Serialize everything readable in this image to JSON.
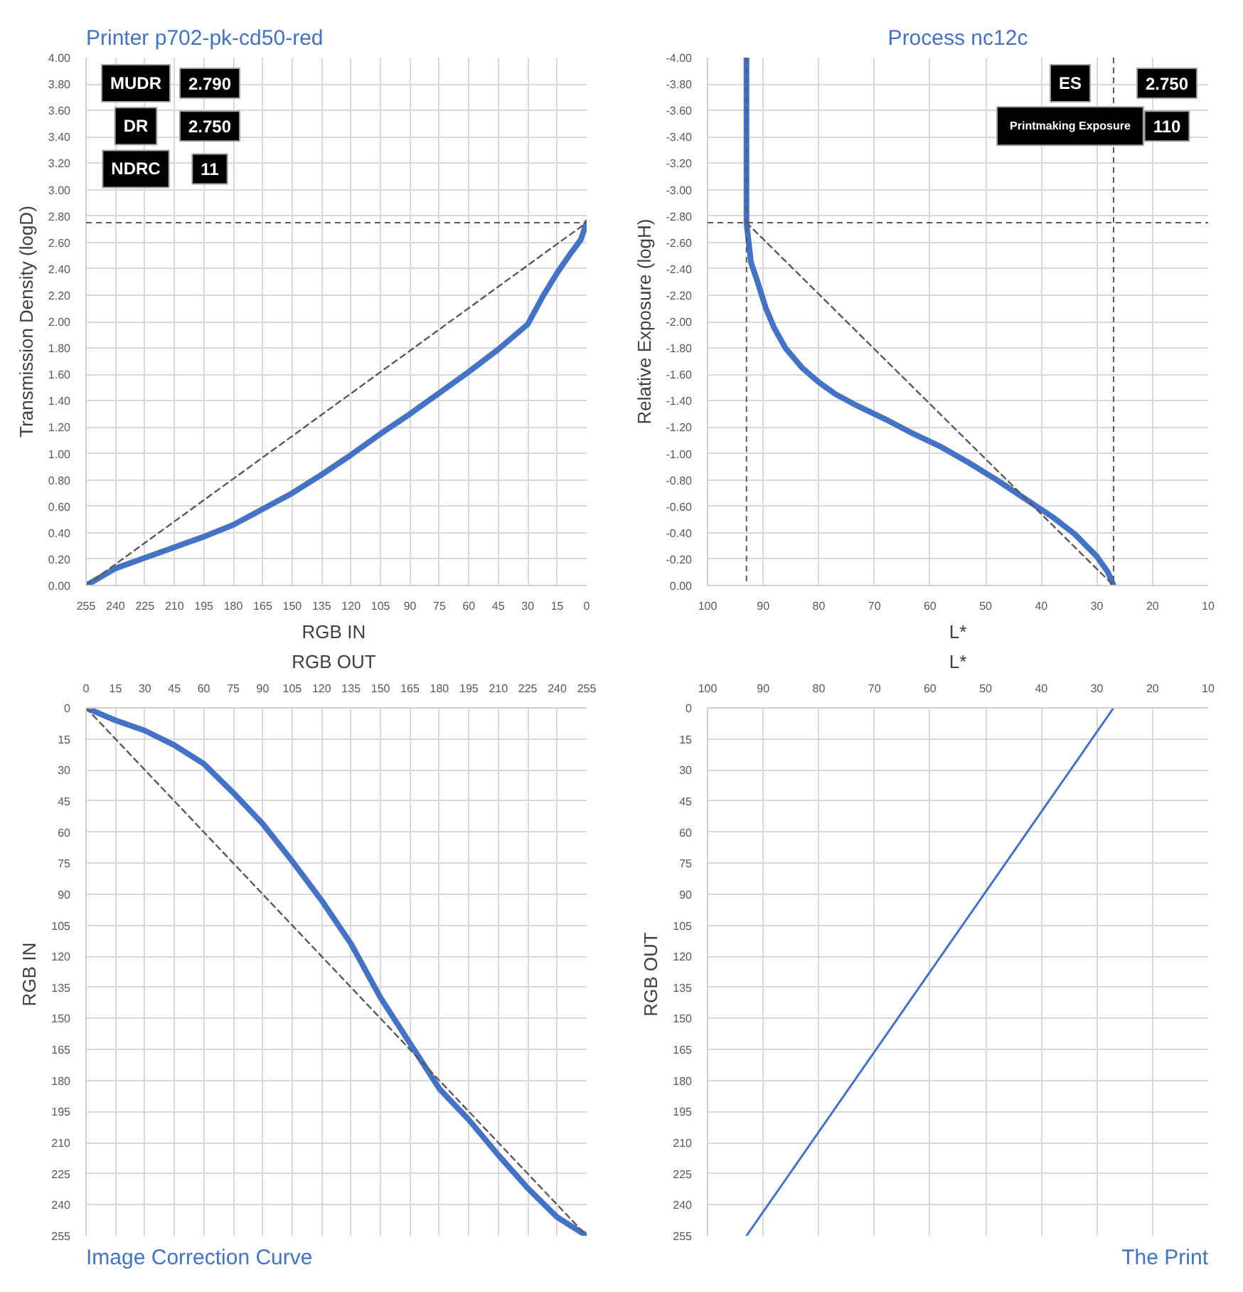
{
  "chart_data": [
    {
      "type": "line",
      "title": "Printer p702-pk-cd50-red",
      "xlabel": "RGB  IN",
      "ylabel": "Transmission Density (logD)",
      "xlim": [
        255,
        0
      ],
      "ylim": [
        0,
        4
      ],
      "xticks": [
        255,
        240,
        225,
        210,
        195,
        180,
        165,
        150,
        135,
        120,
        105,
        90,
        75,
        60,
        45,
        30,
        15,
        0
      ],
      "yticks": [
        {
          "value": 0,
          "label": "0.00"
        },
        {
          "value": 0.2,
          "label": "0.20"
        },
        {
          "value": 0.4,
          "label": "0.40"
        },
        {
          "value": 0.6,
          "label": "0.60"
        },
        {
          "value": 0.8,
          "label": "0.80"
        },
        {
          "value": 1,
          "label": "1.00"
        },
        {
          "value": 1.2,
          "label": "1.20"
        },
        {
          "value": 1.4,
          "label": "1.40"
        },
        {
          "value": 1.6,
          "label": "1.60"
        },
        {
          "value": 1.8,
          "label": "1.80"
        },
        {
          "value": 2,
          "label": "2.00"
        },
        {
          "value": 2.2,
          "label": "2.20"
        },
        {
          "value": 2.4,
          "label": "2.40"
        },
        {
          "value": 2.6,
          "label": "2.60"
        },
        {
          "value": 2.8,
          "label": "2.80"
        },
        {
          "value": 3,
          "label": "3.00"
        },
        {
          "value": 3.2,
          "label": "3.20"
        },
        {
          "value": 3.4,
          "label": "3.40"
        },
        {
          "value": 3.6,
          "label": "3.60"
        },
        {
          "value": 3.8,
          "label": "3.80"
        },
        {
          "value": 4,
          "label": "4.00"
        }
      ],
      "grid": true,
      "line_style": "solid",
      "series": [
        {
          "color": "#4472c4",
          "x": [
            255,
            240,
            225,
            210,
            195,
            180,
            165,
            150,
            135,
            120,
            105,
            90,
            75,
            60,
            45,
            30,
            22,
            15,
            8,
            3,
            0
          ],
          "values": [
            0,
            0.13,
            0.21,
            0.29,
            0.37,
            0.46,
            0.58,
            0.7,
            0.84,
            0.99,
            1.15,
            1.3,
            1.46,
            1.62,
            1.79,
            1.98,
            2.2,
            2.37,
            2.52,
            2.62,
            2.75
          ]
        },
        {
          "color": "#595959",
          "line_style": "dashed",
          "x": [
            255,
            0
          ],
          "values": [
            0,
            2.75
          ]
        }
      ],
      "ref_lines": [
        {
          "axis": "y",
          "value": 2.75,
          "color": "#595959",
          "line_style": "dashed"
        }
      ],
      "annotations": [
        "MUDR",
        "2.790",
        "DR",
        "2.750",
        "NDRC",
        "11"
      ]
    },
    {
      "type": "line",
      "title": "Process nc12c",
      "xlabel": "L*",
      "ylabel": "Relative Exposure (logH)",
      "xlim": [
        100,
        10
      ],
      "ylim": [
        0,
        -4
      ],
      "xticks": [
        100,
        90,
        80,
        70,
        60,
        50,
        40,
        30,
        20,
        10
      ],
      "yticks": [
        {
          "value": 0,
          "label": "0.00"
        },
        {
          "value": -0.2,
          "label": "-0.20"
        },
        {
          "value": -0.4,
          "label": "-0.40"
        },
        {
          "value": -0.6,
          "label": "-0.60"
        },
        {
          "value": -0.8,
          "label": "-0.80"
        },
        {
          "value": -1,
          "label": "-1.00"
        },
        {
          "value": -1.2,
          "label": "-1.20"
        },
        {
          "value": -1.4,
          "label": "-1.40"
        },
        {
          "value": -1.6,
          "label": "-1.60"
        },
        {
          "value": -1.8,
          "label": "-1.80"
        },
        {
          "value": -2,
          "label": "-2.00"
        },
        {
          "value": -2.2,
          "label": "-2.20"
        },
        {
          "value": -2.4,
          "label": "-2.40"
        },
        {
          "value": -2.6,
          "label": "-2.60"
        },
        {
          "value": -2.8,
          "label": "-2.80"
        },
        {
          "value": -3,
          "label": "-3.00"
        },
        {
          "value": -3.2,
          "label": "-3.20"
        },
        {
          "value": -3.4,
          "label": "-3.40"
        },
        {
          "value": -3.6,
          "label": "-3.60"
        },
        {
          "value": -3.8,
          "label": "-3.80"
        },
        {
          "value": -4,
          "label": "-4.00"
        }
      ],
      "grid": true,
      "line_style": "solid",
      "series": [
        {
          "color": "#4472c4",
          "x": [
            93,
            93,
            92.6,
            92.2,
            91,
            89.5,
            88,
            86,
            83,
            80,
            77,
            73,
            68,
            63,
            58,
            53,
            48,
            43,
            38,
            34,
            30,
            28,
            27
          ],
          "values": [
            -4,
            -2.75,
            -2.6,
            -2.45,
            -2.3,
            -2.1,
            -1.95,
            -1.8,
            -1.65,
            -1.54,
            -1.45,
            -1.36,
            -1.26,
            -1.15,
            -1.05,
            -0.93,
            -0.8,
            -0.66,
            -0.52,
            -0.39,
            -0.22,
            -0.1,
            0
          ]
        },
        {
          "color": "#595959",
          "line_style": "dashed",
          "x": [
            93,
            27
          ],
          "values": [
            -2.75,
            0
          ]
        }
      ],
      "ref_lines": [
        {
          "axis": "y",
          "value": -2.75,
          "color": "#595959",
          "line_style": "dashed"
        },
        {
          "axis": "x",
          "value": 93,
          "color": "#595959",
          "line_style": "dashed"
        },
        {
          "axis": "x",
          "value": 27,
          "color": "#595959",
          "line_style": "dashed"
        }
      ],
      "annotations": [
        "ES",
        "2.750",
        "Printmaking Exposure",
        "110"
      ]
    },
    {
      "type": "line",
      "title": "Image Correction Curve",
      "xlabel": "RGB  OUT",
      "ylabel": "RGB  IN",
      "xlim": [
        0,
        255
      ],
      "ylim": [
        255,
        0
      ],
      "xticks": [
        0,
        15,
        30,
        45,
        60,
        75,
        90,
        105,
        120,
        135,
        150,
        165,
        180,
        195,
        210,
        225,
        240,
        255
      ],
      "yticks": [
        0,
        15,
        30,
        45,
        60,
        75,
        90,
        105,
        120,
        135,
        150,
        165,
        180,
        195,
        210,
        225,
        240,
        255
      ],
      "grid": true,
      "line_style": "solid",
      "series": [
        {
          "color": "#4472c4",
          "x": [
            0,
            15,
            30,
            45,
            60,
            75,
            90,
            105,
            120,
            135,
            150,
            165,
            180,
            195,
            210,
            225,
            240,
            255
          ],
          "values": [
            0,
            6,
            11,
            18,
            27,
            41,
            56,
            74,
            93,
            114,
            140,
            162,
            184,
            199,
            216,
            232,
            246,
            255
          ]
        },
        {
          "color": "#595959",
          "line_style": "dashed",
          "x": [
            0,
            255
          ],
          "values": [
            0,
            255
          ]
        }
      ]
    },
    {
      "type": "line",
      "title": "The Print",
      "xlabel": "L*",
      "ylabel": "RGB  OUT",
      "xlim": [
        100,
        10
      ],
      "ylim": [
        255,
        0
      ],
      "xticks": [
        100,
        90,
        80,
        70,
        60,
        50,
        40,
        30,
        20,
        10
      ],
      "yticks": [
        0,
        15,
        30,
        45,
        60,
        75,
        90,
        105,
        120,
        135,
        150,
        165,
        180,
        195,
        210,
        225,
        240,
        255
      ],
      "grid": true,
      "line_style": "solid",
      "series": [
        {
          "color": "#4472c4",
          "x": [
            93,
            27
          ],
          "values": [
            255,
            0
          ]
        }
      ]
    }
  ]
}
